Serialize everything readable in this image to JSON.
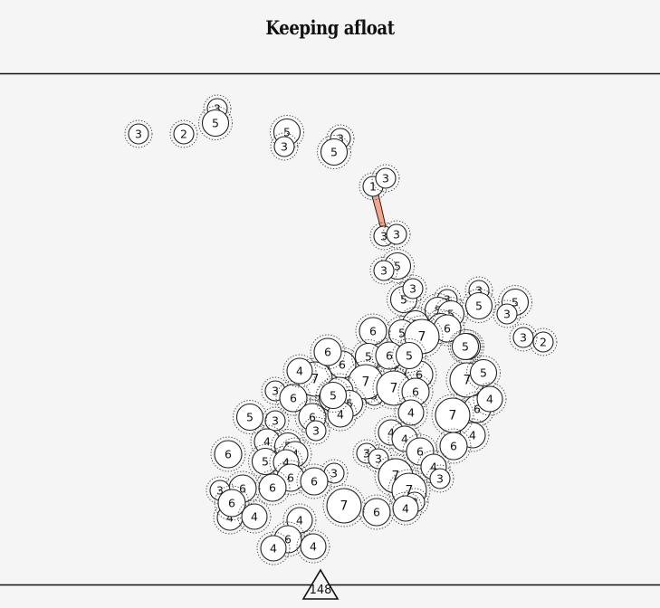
{
  "title": "Keeping afloat",
  "score": "148",
  "colors": {
    "background": "#f6f5f5",
    "line": "#111111",
    "circle_fill": "#ffffff",
    "connector_fill": "#f4a58a"
  },
  "balls": [
    "3",
    "2",
    "3",
    "5",
    "5",
    "3",
    "3",
    "5",
    "1",
    "3",
    "3",
    "3",
    "5",
    "3",
    "5",
    "3",
    "3",
    "5",
    "3",
    "2",
    "3",
    "5",
    "5",
    "5",
    "3",
    "5",
    "6",
    "5",
    "5",
    "7",
    "5",
    "5",
    "7",
    "5",
    "6",
    "6",
    "4",
    "4",
    "7",
    "6",
    "7",
    "6",
    "5",
    "5",
    "5",
    "6",
    "6",
    "5",
    "3",
    "7",
    "7",
    "6",
    "4",
    "3",
    "6",
    "6",
    "5",
    "6",
    "5",
    "4",
    "3",
    "5",
    "3",
    "4",
    "6",
    "4",
    "4",
    "6",
    "6",
    "4",
    "5",
    "4",
    "5",
    "4",
    "5",
    "3",
    "3",
    "7",
    "7",
    "3",
    "4",
    "3",
    "6",
    "6",
    "3",
    "6",
    "4",
    "6",
    "6",
    "4",
    "3",
    "7",
    "6",
    "4",
    "4",
    "6",
    "4",
    "4"
  ]
}
